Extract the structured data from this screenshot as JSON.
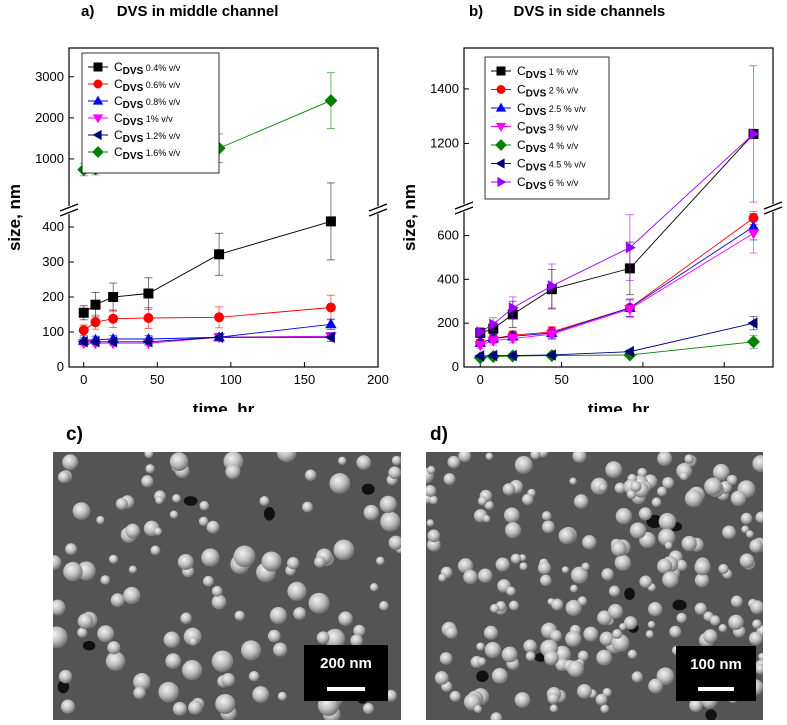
{
  "panels": {
    "a": {
      "letter": "a)",
      "title": "DVS in middle channel"
    },
    "b": {
      "letter": "b)",
      "title": "DVS in side channels"
    },
    "c": {
      "letter": "c)",
      "scale": "200 nm"
    },
    "d": {
      "letter": "d)",
      "scale": "100 nm"
    }
  },
  "chart_data": [
    {
      "type": "scatter",
      "title": "DVS in middle channel",
      "xlabel": "time, hr",
      "ylabel": "size, nm",
      "broken_axis": true,
      "xlim": [
        -10,
        200
      ],
      "x_ticks": [
        0,
        50,
        100,
        150,
        200
      ],
      "ylim_lower": [
        0,
        420
      ],
      "y_ticks_lower": [
        0,
        100,
        200,
        300,
        400
      ],
      "ylim_upper": [
        0,
        3700
      ],
      "y_ticks_upper": [
        1000,
        2000,
        3000
      ],
      "legend_position": "top-left",
      "series": [
        {
          "name_base": "C",
          "name_sub": "DVS",
          "name_suffix": "0.4% v/v",
          "color": "#000000",
          "marker": "square",
          "segment": "lower",
          "x": [
            0,
            8,
            20,
            44,
            92,
            168
          ],
          "y": [
            155,
            178,
            200,
            210,
            322,
            416
          ],
          "err": [
            20,
            35,
            40,
            45,
            60,
            110
          ]
        },
        {
          "name_base": "C",
          "name_sub": "DVS",
          "name_suffix": "0.6% v/v",
          "color": "#ff0000",
          "marker": "circle",
          "segment": "lower",
          "x": [
            0,
            8,
            20,
            44,
            92,
            168
          ],
          "y": [
            105,
            128,
            138,
            140,
            142,
            170
          ],
          "err": [
            15,
            20,
            25,
            30,
            30,
            35
          ]
        },
        {
          "name_base": "C",
          "name_sub": "DVS",
          "name_suffix": "0.8% v/v",
          "color": "#0000ff",
          "marker": "triangle-up",
          "segment": "lower",
          "x": [
            0,
            8,
            20,
            44,
            92,
            168
          ],
          "y": [
            75,
            78,
            80,
            80,
            85,
            122
          ],
          "err": [
            10,
            10,
            10,
            10,
            10,
            15
          ]
        },
        {
          "name_base": "C",
          "name_sub": "DVS",
          "name_suffix": "1% v/v",
          "color": "#ff00ff",
          "marker": "triangle-down",
          "segment": "lower",
          "x": [
            0,
            8,
            20,
            44,
            92,
            168
          ],
          "y": [
            68,
            68,
            68,
            68,
            85,
            88
          ],
          "err": [
            8,
            8,
            8,
            8,
            10,
            10
          ]
        },
        {
          "name_base": "C",
          "name_sub": "DVS",
          "name_suffix": "1.2% v/v",
          "color": "#00007f",
          "marker": "triangle-left",
          "segment": "lower",
          "x": [
            0,
            8,
            20,
            44,
            92,
            168
          ],
          "y": [
            72,
            72,
            72,
            72,
            85,
            85
          ],
          "err": [
            8,
            8,
            8,
            8,
            10,
            12
          ]
        },
        {
          "name_base": "C",
          "name_sub": "DVS",
          "name_suffix": "1.6% v/v",
          "color": "#008000",
          "marker": "diamond",
          "segment": "upper",
          "x": [
            0,
            8,
            20,
            44,
            92,
            168
          ],
          "y": [
            740,
            760,
            860,
            890,
            1260,
            2420
          ],
          "err": [
            150,
            150,
            200,
            200,
            350,
            680
          ]
        }
      ]
    },
    {
      "type": "scatter",
      "title": "DVS in side channels",
      "xlabel": "time, hr",
      "ylabel": "size, nm",
      "broken_axis": true,
      "xlim": [
        -10,
        180
      ],
      "x_ticks": [
        0,
        50,
        100,
        150
      ],
      "ylim_lower": [
        0,
        680
      ],
      "y_ticks_lower": [
        0,
        200,
        400,
        600
      ],
      "ylim_upper": [
        1000,
        1550
      ],
      "y_ticks_upper": [
        1200,
        1400
      ],
      "legend_position": "top-left",
      "series": [
        {
          "name_base": "C",
          "name_sub": "DVS",
          "name_suffix": "1 % v/v",
          "color": "#000000",
          "marker": "square",
          "segment": "lower",
          "x": [
            0,
            8,
            20,
            44,
            92,
            168
          ],
          "y": [
            155,
            175,
            240,
            355,
            450,
            1235
          ],
          "err": [
            20,
            30,
            60,
            90,
            120,
            0
          ]
        },
        {
          "name_base": "C",
          "name_sub": "DVS",
          "name_suffix": "2 % v/v",
          "color": "#ff0000",
          "marker": "circle",
          "segment": "lower",
          "x": [
            0,
            8,
            20,
            44,
            92,
            168
          ],
          "y": [
            110,
            130,
            145,
            160,
            270,
            680
          ],
          "err": [
            15,
            20,
            20,
            25,
            40,
            30
          ]
        },
        {
          "name_base": "C",
          "name_sub": "DVS",
          "name_suffix": "2.5 % v/v",
          "color": "#0000ff",
          "marker": "triangle-up",
          "segment": "lower",
          "x": [
            0,
            8,
            20,
            44,
            92,
            168
          ],
          "y": [
            110,
            130,
            140,
            155,
            270,
            640
          ],
          "err": [
            15,
            20,
            20,
            25,
            40,
            60
          ]
        },
        {
          "name_base": "C",
          "name_sub": "DVS",
          "name_suffix": "3 % v/v",
          "color": "#ff00ff",
          "marker": "triangle-down",
          "segment": "lower",
          "x": [
            0,
            8,
            20,
            44,
            92,
            168
          ],
          "y": [
            100,
            120,
            130,
            150,
            265,
            610
          ],
          "err": [
            15,
            20,
            20,
            25,
            40,
            90
          ]
        },
        {
          "name_base": "C",
          "name_sub": "DVS",
          "name_suffix": "4 % v/v",
          "color": "#008000",
          "marker": "diamond",
          "segment": "lower",
          "x": [
            0,
            8,
            20,
            44,
            92,
            168
          ],
          "y": [
            42,
            48,
            50,
            52,
            55,
            115
          ],
          "err": [
            5,
            5,
            5,
            5,
            8,
            30
          ]
        },
        {
          "name_base": "C",
          "name_sub": "DVS",
          "name_suffix": "4.5 % v/v",
          "color": "#00007f",
          "marker": "triangle-left",
          "segment": "lower",
          "x": [
            0,
            8,
            20,
            44,
            92,
            168
          ],
          "y": [
            50,
            52,
            52,
            55,
            70,
            200
          ],
          "err": [
            5,
            5,
            5,
            5,
            8,
            30
          ]
        },
        {
          "name_base": "C",
          "name_sub": "DVS",
          "name_suffix": "6 % v/v",
          "color": "#9900ff",
          "marker": "triangle-right",
          "segment": "lower",
          "x": [
            0,
            8,
            20,
            44,
            92,
            168
          ],
          "y": [
            160,
            195,
            270,
            370,
            545,
            1235
          ],
          "err": [
            20,
            30,
            50,
            100,
            150,
            250
          ]
        }
      ]
    }
  ]
}
